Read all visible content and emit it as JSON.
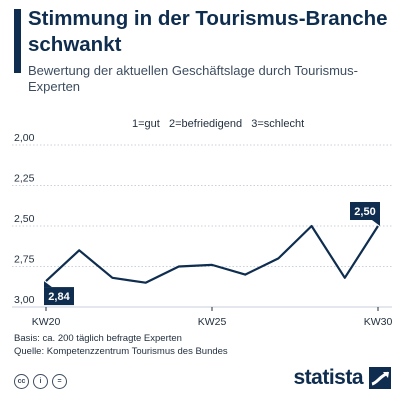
{
  "header": {
    "title": "Stimmung in der Tourismus-Branche schwankt",
    "subtitle": "Bewertung der aktuellen Geschäftslage durch Tourismus-Experten",
    "scale_note": "1=gut   2=befriedigend   3=schlecht"
  },
  "chart_data": {
    "type": "line",
    "x": [
      20,
      21,
      22,
      23,
      24,
      25,
      26,
      27,
      28,
      29,
      30
    ],
    "y": [
      2.84,
      2.65,
      2.82,
      2.85,
      2.75,
      2.74,
      2.8,
      2.7,
      2.5,
      2.82,
      2.5
    ],
    "ylim": [
      3.0,
      2.0
    ],
    "y_ticks": [
      "2,00",
      "2,25",
      "2,50",
      "2,75",
      "3,00"
    ],
    "y_inverted": true,
    "x_tick_labels": [
      {
        "x": 20,
        "label": "KW20"
      },
      {
        "x": 25,
        "label": "KW25"
      },
      {
        "x": 30,
        "label": "KW30"
      }
    ],
    "data_labels": [
      {
        "index": 0,
        "label": "2,84"
      },
      {
        "index": 10,
        "label": "2,50"
      }
    ],
    "grid": true,
    "line_color": "#0e2d4f"
  },
  "footer": {
    "basis": "Basis: ca. 200 täglich befragte Experten",
    "source": "Quelle: Kompetenzzentrum Tourismus des Bundes",
    "license_icons": [
      "cc-icon",
      "by-icon",
      "nd-icon"
    ],
    "license_glyphs": [
      "cc",
      "i",
      "="
    ],
    "brand": "statista"
  }
}
